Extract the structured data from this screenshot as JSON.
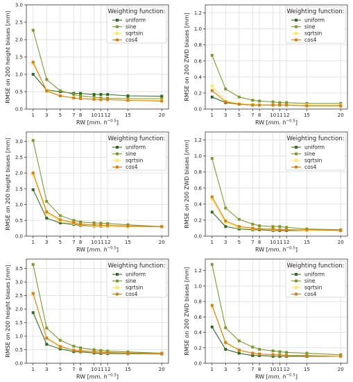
{
  "colors": {
    "uniform": "#2e6b1f",
    "sine": "#7a9a2a",
    "sqrtsin": "#ffe94a",
    "cos4": "#e07a10",
    "grid": "#d9d9d9",
    "axis": "#333333"
  },
  "legend_title": "Weighting function:",
  "x_label_prefix": "RW [",
  "x_label_unit_italic": "mm. h",
  "x_label_sup": "−0.5",
  "x_label_suffix": "]",
  "chart_data": [
    {
      "type": "line",
      "ylabel_text": "RMSE on 200 height biases [",
      "ylabel_italic": "mm",
      "ylabel_end": "]",
      "ylim": [
        0,
        3.0
      ],
      "yticks": [
        "0.0",
        "0.5",
        "1.0",
        "1.5",
        "2.0",
        "2.5",
        "3.0"
      ],
      "x": [
        1,
        3,
        5,
        7,
        8,
        10,
        11,
        12,
        15,
        20
      ],
      "xticks": [
        "1",
        "3",
        "5",
        "7",
        "8",
        "10",
        "11",
        "12",
        "15",
        "20"
      ],
      "xlim": [
        0.0,
        21.0
      ],
      "legend_loc": "top-right",
      "series": [
        {
          "name": "uniform",
          "values": [
            1.0,
            0.55,
            0.5,
            0.45,
            0.45,
            0.42,
            0.42,
            0.42,
            0.38,
            0.37
          ]
        },
        {
          "name": "sine",
          "values": [
            2.27,
            0.85,
            0.53,
            0.42,
            0.38,
            0.34,
            0.32,
            0.31,
            0.3,
            0.3
          ]
        },
        {
          "name": "sqrtsin",
          "values": [
            1.3,
            0.55,
            0.38,
            0.33,
            0.3,
            0.29,
            0.28,
            0.27,
            0.26,
            0.25
          ]
        },
        {
          "name": "cos4",
          "values": [
            1.35,
            0.52,
            0.38,
            0.32,
            0.3,
            0.28,
            0.27,
            0.27,
            0.25,
            0.23
          ]
        }
      ]
    },
    {
      "type": "line",
      "ylabel_text": "RMSE on 200 ZWD biases [",
      "ylabel_italic": "mm",
      "ylabel_end": "]",
      "ylim": [
        0,
        1.3
      ],
      "yticks": [
        "0.0",
        "0.2",
        "0.4",
        "0.6",
        "0.8",
        "1.0",
        "1.2"
      ],
      "x": [
        1,
        3,
        5,
        7,
        8,
        10,
        11,
        12,
        15,
        20
      ],
      "xticks": [
        "1",
        "3",
        "5",
        "7",
        "8",
        "10",
        "11",
        "12",
        "15",
        "20"
      ],
      "xlim": [
        0.0,
        21.0
      ],
      "legend_loc": "top-right",
      "series": [
        {
          "name": "uniform",
          "values": [
            0.15,
            0.08,
            0.06,
            0.05,
            0.05,
            0.05,
            0.05,
            0.05,
            0.04,
            0.04
          ]
        },
        {
          "name": "sine",
          "values": [
            0.67,
            0.25,
            0.15,
            0.11,
            0.1,
            0.09,
            0.08,
            0.08,
            0.07,
            0.07
          ]
        },
        {
          "name": "sqrtsin",
          "values": [
            0.29,
            0.1,
            0.07,
            0.06,
            0.05,
            0.05,
            0.05,
            0.05,
            0.05,
            0.05
          ]
        },
        {
          "name": "cos4",
          "values": [
            0.23,
            0.09,
            0.06,
            0.05,
            0.05,
            0.05,
            0.05,
            0.05,
            0.04,
            0.04
          ]
        }
      ]
    },
    {
      "type": "line",
      "ylabel_text": "RMSE on 200 height biases [",
      "ylabel_italic": "mm",
      "ylabel_end": "]",
      "ylim": [
        0,
        3.3
      ],
      "yticks": [
        "0.0",
        "0.5",
        "1.0",
        "1.5",
        "2.0",
        "2.5",
        "3.0"
      ],
      "x": [
        1,
        3,
        5,
        7,
        8,
        10,
        11,
        12,
        15,
        20
      ],
      "xticks": [
        "1",
        "3",
        "5",
        "7",
        "8",
        "10",
        "11",
        "12",
        "15",
        "20"
      ],
      "xlim": [
        0.0,
        21.0
      ],
      "legend_loc": "top-right",
      "series": [
        {
          "name": "uniform",
          "values": [
            1.47,
            0.57,
            0.42,
            0.37,
            0.34,
            0.32,
            0.31,
            0.31,
            0.3,
            0.3
          ]
        },
        {
          "name": "sine",
          "values": [
            3.03,
            1.1,
            0.65,
            0.5,
            0.45,
            0.42,
            0.41,
            0.4,
            0.36,
            0.3
          ]
        },
        {
          "name": "sqrtsin",
          "values": [
            1.95,
            0.72,
            0.48,
            0.4,
            0.36,
            0.33,
            0.32,
            0.31,
            0.3,
            0.3
          ]
        },
        {
          "name": "cos4",
          "values": [
            2.0,
            0.77,
            0.52,
            0.43,
            0.38,
            0.36,
            0.35,
            0.34,
            0.32,
            0.3
          ]
        }
      ]
    },
    {
      "type": "line",
      "ylabel_text": "RMSE on 200 ZWD biases [",
      "ylabel_italic": "mm",
      "ylabel_end": "]",
      "ylim": [
        0,
        1.3
      ],
      "yticks": [
        "0.0",
        "0.2",
        "0.4",
        "0.6",
        "0.8",
        "1.0",
        "1.2"
      ],
      "x": [
        1,
        3,
        5,
        7,
        8,
        10,
        11,
        12,
        15,
        20
      ],
      "xticks": [
        "1",
        "3",
        "5",
        "7",
        "8",
        "10",
        "11",
        "12",
        "15",
        "20"
      ],
      "xlim": [
        0.0,
        21.0
      ],
      "legend_loc": "top-right",
      "series": [
        {
          "name": "uniform",
          "values": [
            0.3,
            0.12,
            0.09,
            0.08,
            0.08,
            0.07,
            0.07,
            0.07,
            0.07,
            0.07
          ]
        },
        {
          "name": "sine",
          "values": [
            0.97,
            0.35,
            0.21,
            0.15,
            0.13,
            0.12,
            0.12,
            0.11,
            0.09,
            0.08
          ]
        },
        {
          "name": "sqrtsin",
          "values": [
            0.46,
            0.17,
            0.11,
            0.09,
            0.09,
            0.08,
            0.08,
            0.08,
            0.07,
            0.07
          ]
        },
        {
          "name": "cos4",
          "values": [
            0.49,
            0.19,
            0.12,
            0.1,
            0.09,
            0.09,
            0.08,
            0.08,
            0.08,
            0.07
          ]
        }
      ]
    },
    {
      "type": "line",
      "ylabel_text": "RMSE on 200 height biases [",
      "ylabel_italic": "mm",
      "ylabel_end": "]",
      "ylim": [
        0,
        3.85
      ],
      "yticks": [
        "0.0",
        "0.5",
        "1.0",
        "1.5",
        "2.0",
        "2.5",
        "3.0",
        "3.5"
      ],
      "x": [
        1,
        3,
        5,
        7,
        8,
        10,
        11,
        12,
        15,
        20
      ],
      "xticks": [
        "1",
        "3",
        "5",
        "7",
        "8",
        "10",
        "11",
        "12",
        "15",
        "20"
      ],
      "xlim": [
        0.0,
        21.0
      ],
      "legend_loc": "top-right",
      "series": [
        {
          "name": "uniform",
          "values": [
            1.87,
            0.7,
            0.53,
            0.43,
            0.42,
            0.38,
            0.36,
            0.36,
            0.35,
            0.34
          ]
        },
        {
          "name": "sine",
          "values": [
            3.65,
            1.3,
            0.85,
            0.63,
            0.57,
            0.5,
            0.47,
            0.45,
            0.42,
            0.37
          ]
        },
        {
          "name": "sqrtsin",
          "values": [
            2.55,
            0.92,
            0.6,
            0.48,
            0.45,
            0.42,
            0.4,
            0.39,
            0.37,
            0.35
          ]
        },
        {
          "name": "cos4",
          "values": [
            2.58,
            0.93,
            0.62,
            0.48,
            0.46,
            0.43,
            0.41,
            0.4,
            0.38,
            0.36
          ]
        }
      ]
    },
    {
      "type": "line",
      "ylabel_text": "RMSE on 200 ZWD biases [",
      "ylabel_italic": "mm",
      "ylabel_end": "]",
      "ylim": [
        0,
        1.35
      ],
      "yticks": [
        "0.0",
        "0.2",
        "0.4",
        "0.6",
        "0.8",
        "1.0",
        "1.2"
      ],
      "x": [
        1,
        3,
        5,
        7,
        8,
        10,
        11,
        12,
        15,
        20
      ],
      "xticks": [
        "1",
        "3",
        "5",
        "7",
        "8",
        "10",
        "11",
        "12",
        "15",
        "20"
      ],
      "xlim": [
        0.0,
        21.0
      ],
      "legend_loc": "top-right",
      "series": [
        {
          "name": "uniform",
          "values": [
            0.47,
            0.18,
            0.13,
            0.1,
            0.1,
            0.09,
            0.09,
            0.09,
            0.09,
            0.09
          ]
        },
        {
          "name": "sine",
          "values": [
            1.28,
            0.46,
            0.29,
            0.21,
            0.18,
            0.16,
            0.15,
            0.14,
            0.13,
            0.11
          ]
        },
        {
          "name": "sqrtsin",
          "values": [
            0.74,
            0.26,
            0.17,
            0.13,
            0.12,
            0.11,
            0.11,
            0.1,
            0.1,
            0.09
          ]
        },
        {
          "name": "cos4",
          "values": [
            0.75,
            0.27,
            0.17,
            0.13,
            0.12,
            0.11,
            0.11,
            0.1,
            0.1,
            0.09
          ]
        }
      ]
    }
  ]
}
